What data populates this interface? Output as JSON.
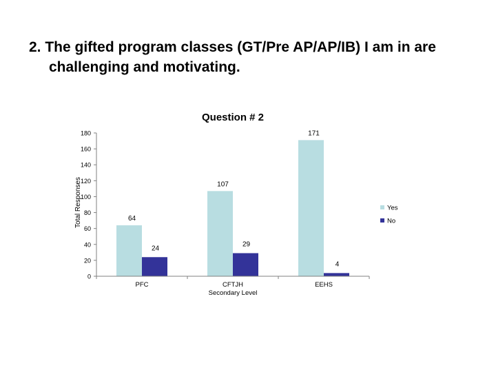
{
  "slide": {
    "title": "2. The gifted program classes (GT/Pre AP/AP/IB) I am in are challenging and motivating."
  },
  "chart_data": {
    "type": "bar",
    "title": "Question # 2",
    "xlabel": "",
    "ylabel": "Total Responses",
    "categories": [
      "PFC",
      "CFTJH Secondary Level",
      "EEHS"
    ],
    "series": [
      {
        "name": "Yes",
        "values": [
          64,
          107,
          171
        ],
        "color": "#b8dde1"
      },
      {
        "name": "No",
        "values": [
          24,
          29,
          4
        ],
        "color": "#333399"
      }
    ],
    "ylim": [
      0,
      180
    ],
    "yticks": [
      0,
      20,
      40,
      60,
      80,
      100,
      120,
      140,
      160,
      180
    ],
    "grid": false,
    "legend": "right"
  }
}
